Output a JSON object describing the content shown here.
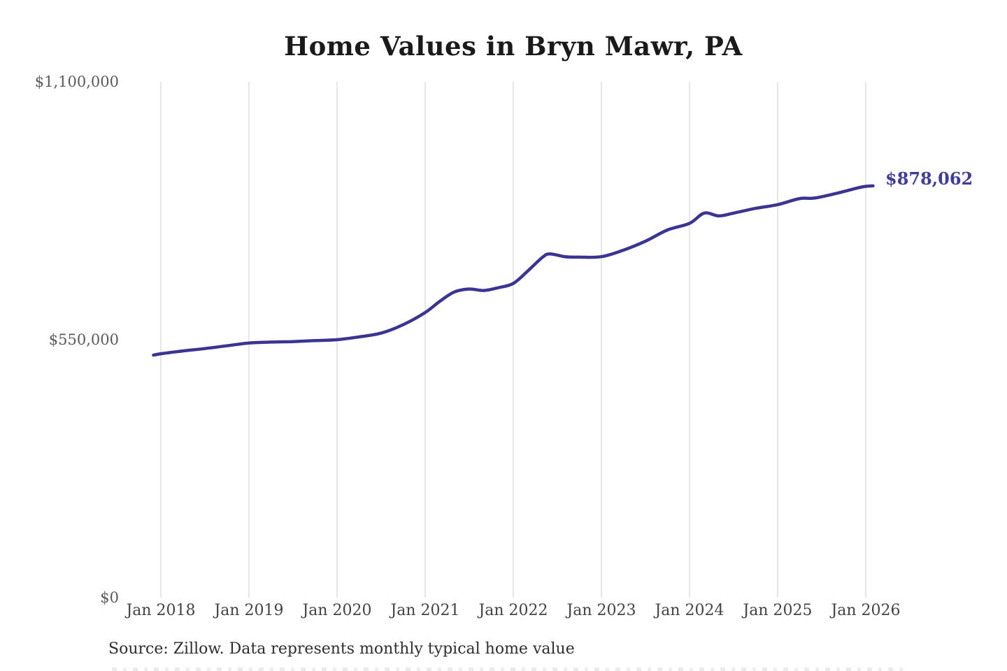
{
  "title": "Home Values in Bryn Mawr, PA",
  "source_note": "Source: Zillow. Data represents monthly typical home value",
  "end_label": "$878,062",
  "colors": {
    "line": "#3a3492",
    "end_label": "#3f3d99",
    "gridline": "#cccccc",
    "y_tick_text": "#5a5a5a",
    "x_tick_text": "#444444",
    "title_text": "#1a1a1a",
    "source_text": "#2e2e2e",
    "background": "#ffffff"
  },
  "chart_data": {
    "type": "line",
    "title": "Home Values in Bryn Mawr, PA",
    "xlabel": "",
    "ylabel": "",
    "ylim": [
      0,
      1100000
    ],
    "grid": "vertical-only",
    "legend": "none",
    "x_ticks": [
      "Jan 2018",
      "Jan 2019",
      "Jan 2020",
      "Jan 2021",
      "Jan 2022",
      "Jan 2023",
      "Jan 2024",
      "Jan 2025",
      "Jan 2026"
    ],
    "y_ticks": [
      {
        "label": "$0",
        "value": 0
      },
      {
        "label": "$550,000",
        "value": 550000
      },
      {
        "label": "$1,100,000",
        "value": 1100000
      }
    ],
    "annotation": {
      "text": "$878,062",
      "value": 878062,
      "position": "line-end"
    },
    "series": [
      {
        "name": "Monthly typical home value",
        "points": [
          [
            "2017-12",
            517000
          ],
          [
            "2018-01",
            520000
          ],
          [
            "2018-04",
            526000
          ],
          [
            "2018-07",
            531000
          ],
          [
            "2018-10",
            537000
          ],
          [
            "2019-01",
            543000
          ],
          [
            "2019-04",
            545000
          ],
          [
            "2019-07",
            546000
          ],
          [
            "2019-10",
            548000
          ],
          [
            "2020-01",
            550000
          ],
          [
            "2020-04",
            556000
          ],
          [
            "2020-07",
            564000
          ],
          [
            "2020-10",
            582000
          ],
          [
            "2021-01",
            608000
          ],
          [
            "2021-03",
            632000
          ],
          [
            "2021-05",
            652000
          ],
          [
            "2021-07",
            658000
          ],
          [
            "2021-09",
            655000
          ],
          [
            "2021-11",
            661000
          ],
          [
            "2022-01",
            670000
          ],
          [
            "2022-03",
            697000
          ],
          [
            "2022-05",
            726000
          ],
          [
            "2022-06",
            733000
          ],
          [
            "2022-08",
            727000
          ],
          [
            "2022-10",
            726000
          ],
          [
            "2023-01",
            727000
          ],
          [
            "2023-04",
            741000
          ],
          [
            "2023-07",
            760000
          ],
          [
            "2023-10",
            784000
          ],
          [
            "2024-01",
            798000
          ],
          [
            "2024-03",
            820000
          ],
          [
            "2024-05",
            814000
          ],
          [
            "2024-07",
            820000
          ],
          [
            "2024-10",
            830000
          ],
          [
            "2025-01",
            838000
          ],
          [
            "2025-04",
            851000
          ],
          [
            "2025-06",
            852000
          ],
          [
            "2025-09",
            862000
          ],
          [
            "2025-12",
            874000
          ],
          [
            "2026-01",
            877000
          ],
          [
            "2026-02",
            878062
          ]
        ]
      }
    ]
  }
}
